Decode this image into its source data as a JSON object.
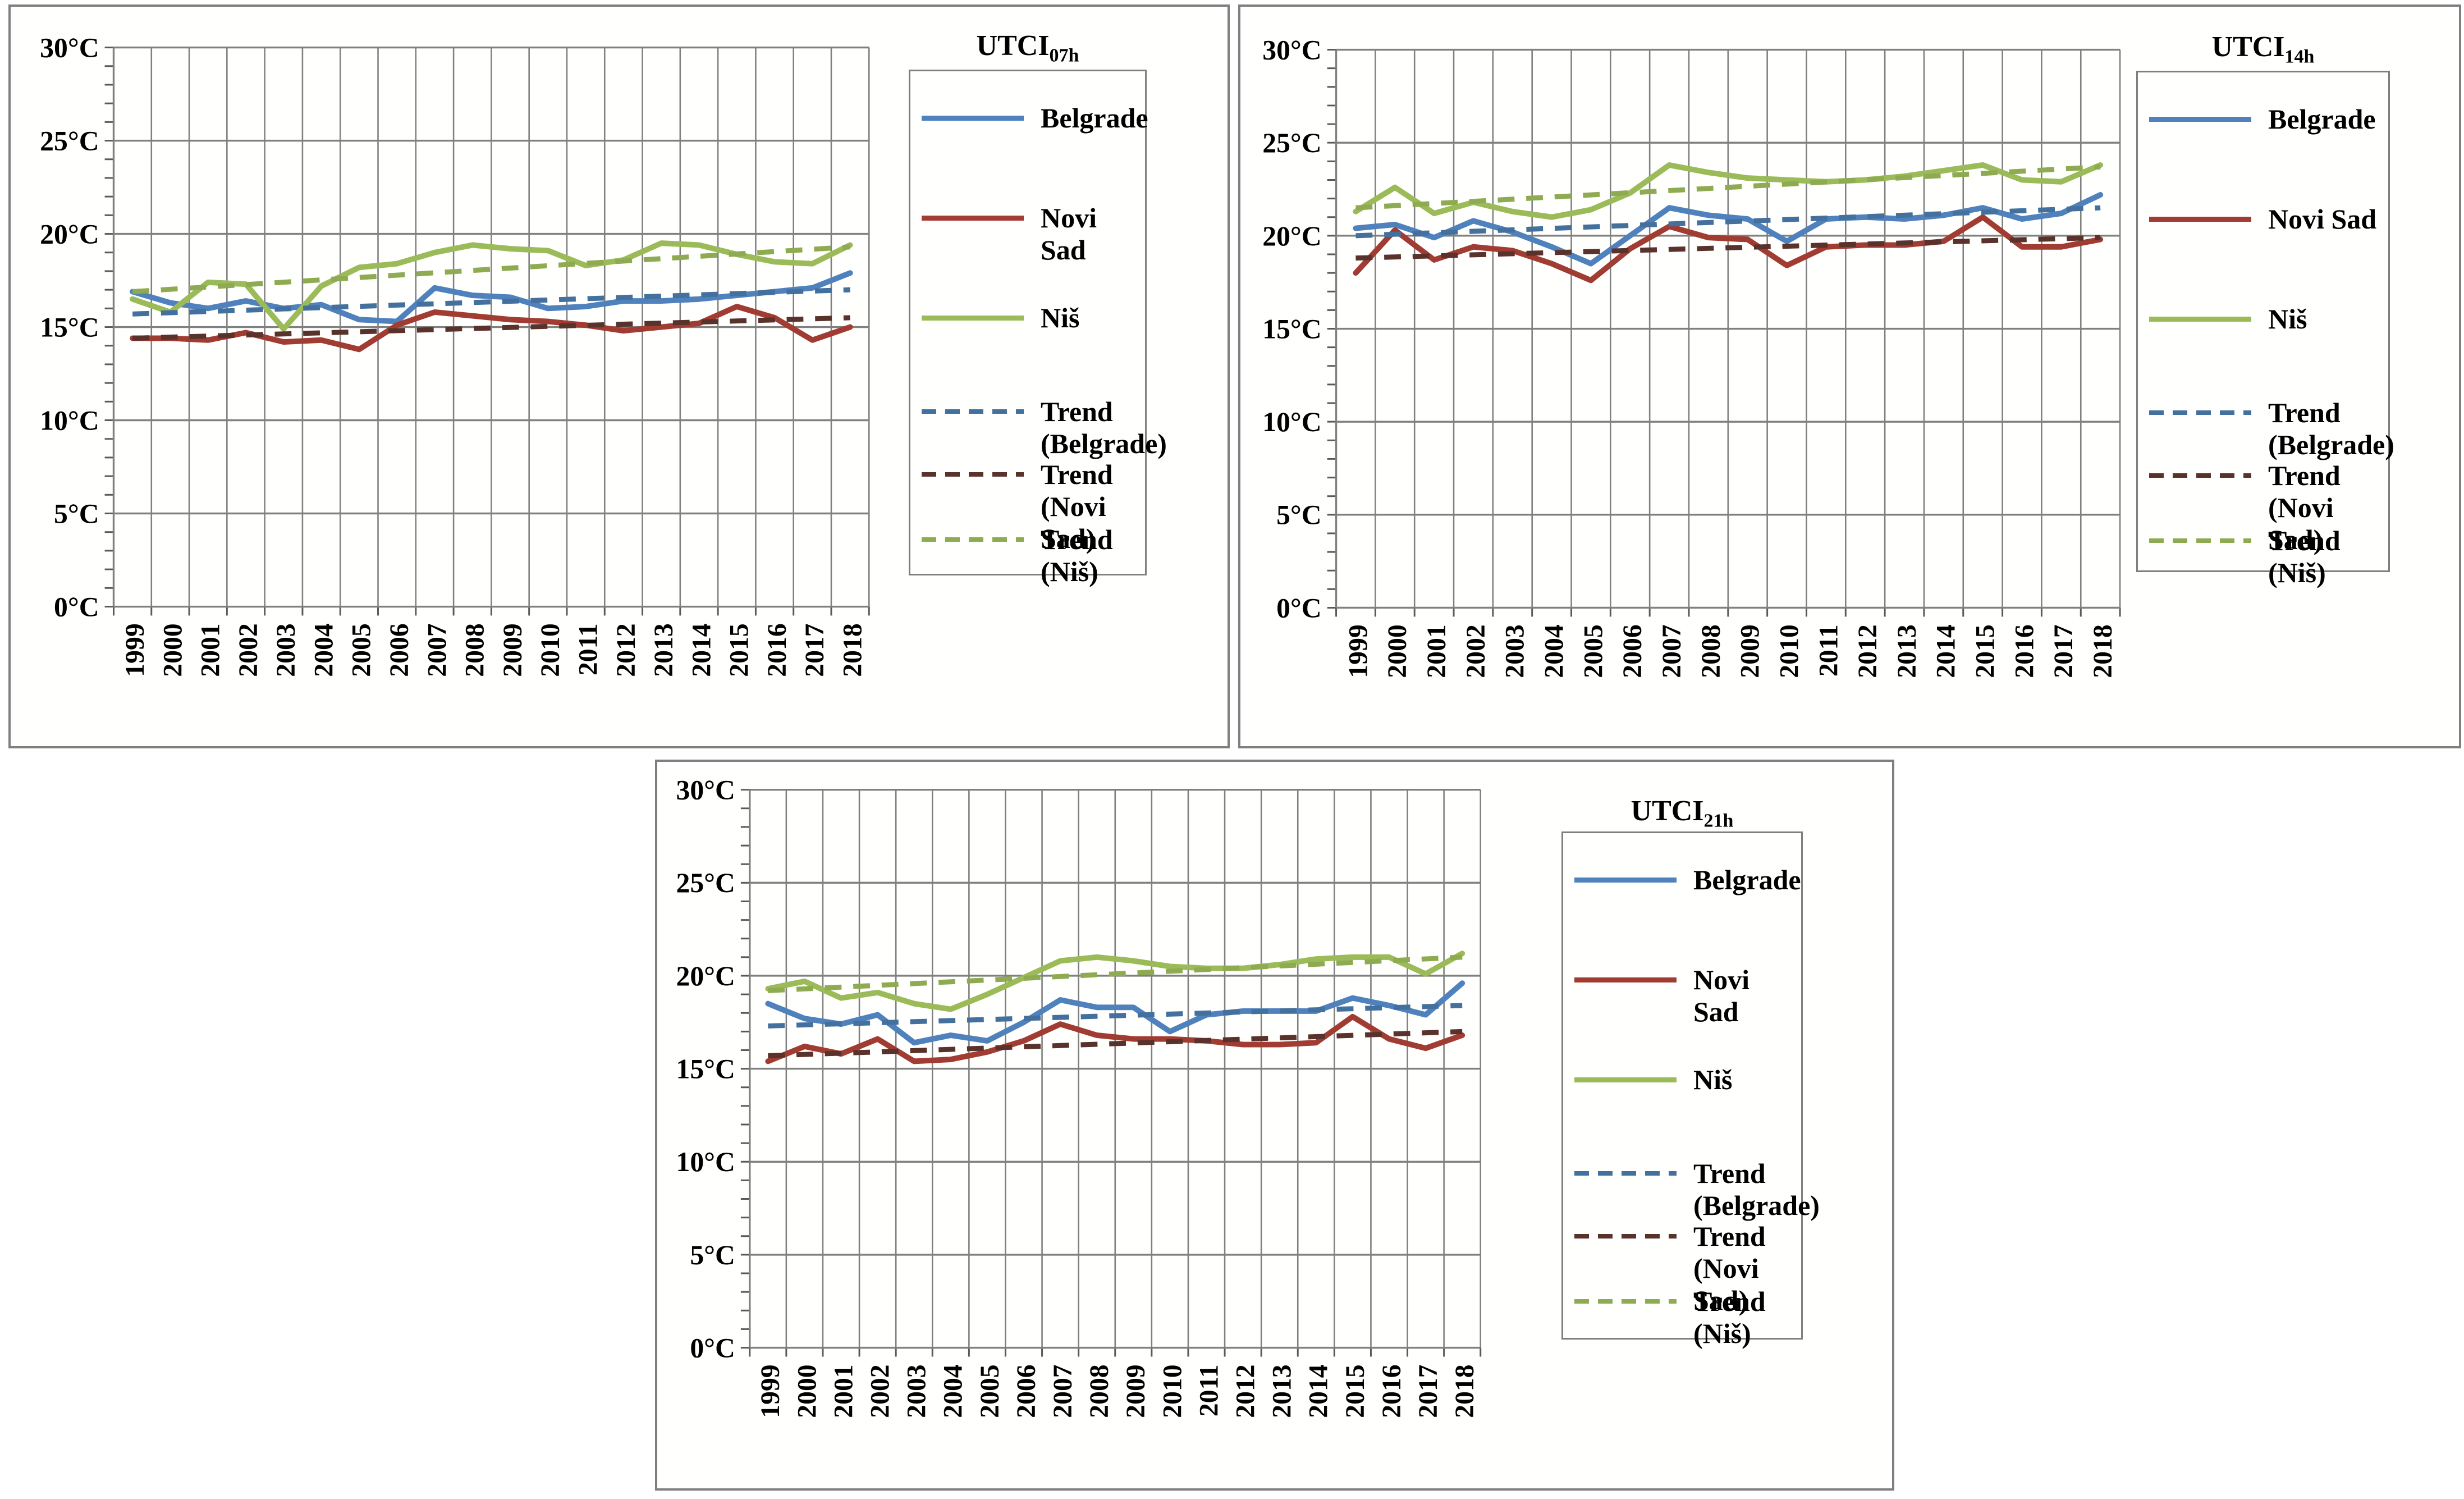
{
  "figure": {
    "description_texts": {
      "degree_unit": "°C"
    }
  },
  "chart_data": [
    {
      "type": "line",
      "title": "UTCI07h",
      "title_main": "UTCI",
      "title_sub": "07h",
      "x": [
        "1999",
        "2000",
        "2001",
        "2002",
        "2003",
        "2004",
        "2005",
        "2006",
        "2007",
        "2008",
        "2009",
        "2010",
        "2011",
        "2012",
        "2013",
        "2014",
        "2015",
        "2016",
        "2017",
        "2018"
      ],
      "ylim": [
        0,
        30
      ],
      "ytick_step": 5,
      "y_tick_labels": [
        "30°C",
        "25°C",
        "20°C",
        "15°C",
        "10°C",
        "5°C",
        "0°C"
      ],
      "grid": true,
      "legend_position": "right",
      "series": [
        {
          "name": "Belgrade",
          "color": "#4F81BD",
          "values": [
            16.9,
            16.3,
            16.0,
            16.4,
            16.0,
            16.2,
            15.4,
            15.3,
            17.1,
            16.7,
            16.6,
            16.0,
            16.1,
            16.4,
            16.4,
            16.5,
            16.7,
            16.9,
            17.1,
            17.9
          ]
        },
        {
          "name": "Novi Sad",
          "color": "#A13C33",
          "values": [
            14.4,
            14.4,
            14.3,
            14.7,
            14.2,
            14.3,
            13.8,
            15.1,
            15.8,
            15.6,
            15.4,
            15.3,
            15.1,
            14.8,
            15.0,
            15.2,
            16.1,
            15.5,
            14.3,
            15.0
          ]
        },
        {
          "name": "Niš",
          "color": "#9BBB59",
          "values": [
            16.5,
            15.8,
            17.4,
            17.3,
            14.9,
            17.2,
            18.2,
            18.4,
            19.0,
            19.4,
            19.2,
            19.1,
            18.3,
            18.6,
            19.5,
            19.4,
            18.9,
            18.5,
            18.4,
            19.4
          ]
        }
      ],
      "trends": [
        {
          "name": "Trend (Belgrade)",
          "label_lines": [
            "Trend",
            "(Belgrade)"
          ],
          "color": "#44709D",
          "start": 15.7,
          "end": 17.0
        },
        {
          "name": "Trend (Novi Sad)",
          "label_lines": [
            "Trend (Novi",
            "Sad)"
          ],
          "color": "#59322C",
          "start": 14.4,
          "end": 15.5
        },
        {
          "name": "Trend (Niš)",
          "label_lines": [
            "Trend (Niš)"
          ],
          "color": "#8FAB52",
          "start": 16.9,
          "end": 19.3
        }
      ]
    },
    {
      "type": "line",
      "title": "UTCI14h",
      "title_main": "UTCI",
      "title_sub": "14h",
      "x": [
        "1999",
        "2000",
        "2001",
        "2002",
        "2003",
        "2004",
        "2005",
        "2006",
        "2007",
        "2008",
        "2009",
        "2010",
        "2011",
        "2012",
        "2013",
        "2014",
        "2015",
        "2016",
        "2017",
        "2018"
      ],
      "ylim": [
        0,
        30
      ],
      "ytick_step": 5,
      "y_tick_labels": [
        "30°C",
        "25°C",
        "20°C",
        "15°C",
        "10°C",
        "5°C",
        "0°C"
      ],
      "grid": true,
      "legend_position": "right",
      "series": [
        {
          "name": "Belgrade",
          "color": "#4F81BD",
          "values": [
            20.4,
            20.6,
            19.9,
            20.8,
            20.2,
            19.4,
            18.5,
            20.0,
            21.5,
            21.1,
            20.9,
            19.7,
            20.9,
            21.0,
            20.9,
            21.1,
            21.5,
            20.9,
            21.2,
            22.2
          ]
        },
        {
          "name": "Novi Sad",
          "color": "#A13C33",
          "values": [
            18.0,
            20.3,
            18.7,
            19.4,
            19.2,
            18.5,
            17.6,
            19.3,
            20.5,
            19.9,
            19.8,
            18.4,
            19.4,
            19.5,
            19.5,
            19.7,
            21.0,
            19.4,
            19.4,
            19.8
          ]
        },
        {
          "name": "Niš",
          "color": "#9BBB59",
          "values": [
            21.3,
            22.6,
            21.2,
            21.8,
            21.3,
            21.0,
            21.4,
            22.3,
            23.8,
            23.4,
            23.1,
            23.0,
            22.9,
            23.0,
            23.2,
            23.5,
            23.8,
            23.0,
            22.9,
            23.8
          ]
        }
      ],
      "trends": [
        {
          "name": "Trend (Belgrade)",
          "label_lines": [
            "Trend",
            "(Belgrade)"
          ],
          "color": "#44709D",
          "start": 20.0,
          "end": 21.5
        },
        {
          "name": "Trend (Novi Sad)",
          "label_lines": [
            "Trend (Novi",
            "Sad)"
          ],
          "color": "#59322C",
          "start": 18.8,
          "end": 19.9
        },
        {
          "name": "Trend (Niš)",
          "label_lines": [
            "Trend (Niš)"
          ],
          "color": "#8FAB52",
          "start": 21.5,
          "end": 23.7
        }
      ]
    },
    {
      "type": "line",
      "title": "UTCI21h",
      "title_main": "UTCI",
      "title_sub": "21h",
      "x": [
        "1999",
        "2000",
        "2001",
        "2002",
        "2003",
        "2004",
        "2005",
        "2006",
        "2007",
        "2008",
        "2009",
        "2010",
        "2011",
        "2012",
        "2013",
        "2014",
        "2015",
        "2016",
        "2017",
        "2018"
      ],
      "ylim": [
        0,
        30
      ],
      "ytick_step": 5,
      "y_tick_labels": [
        "30°C",
        "25°C",
        "20°C",
        "15°C",
        "10°C",
        "5°C",
        "0°C"
      ],
      "grid": true,
      "legend_position": "right",
      "series": [
        {
          "name": "Belgrade",
          "color": "#4F81BD",
          "values": [
            18.5,
            17.7,
            17.4,
            17.9,
            16.4,
            16.8,
            16.5,
            17.5,
            18.7,
            18.3,
            18.3,
            17.0,
            17.9,
            18.1,
            18.1,
            18.1,
            18.8,
            18.4,
            17.9,
            19.6
          ]
        },
        {
          "name": "Novi Sad",
          "color": "#A13C33",
          "values": [
            15.4,
            16.2,
            15.8,
            16.6,
            15.4,
            15.5,
            15.9,
            16.5,
            17.4,
            16.8,
            16.6,
            16.6,
            16.5,
            16.3,
            16.3,
            16.4,
            17.8,
            16.6,
            16.1,
            16.8
          ]
        },
        {
          "name": "Niš",
          "color": "#9BBB59",
          "values": [
            19.3,
            19.7,
            18.8,
            19.1,
            18.5,
            18.2,
            19.0,
            19.9,
            20.8,
            21.0,
            20.8,
            20.5,
            20.4,
            20.4,
            20.6,
            20.9,
            21.0,
            21.0,
            20.1,
            21.2
          ]
        }
      ],
      "trends": [
        {
          "name": "Trend (Belgrade)",
          "label_lines": [
            "Trend",
            "(Belgrade)"
          ],
          "color": "#44709D",
          "start": 17.3,
          "end": 18.4
        },
        {
          "name": "Trend (Novi Sad)",
          "label_lines": [
            "Trend (Novi",
            "Sad)"
          ],
          "color": "#59322C",
          "start": 15.7,
          "end": 17.0
        },
        {
          "name": "Trend (Niš)",
          "label_lines": [
            "Trend (Niš)"
          ],
          "color": "#8FAB52",
          "start": 19.2,
          "end": 21.0
        }
      ]
    }
  ]
}
